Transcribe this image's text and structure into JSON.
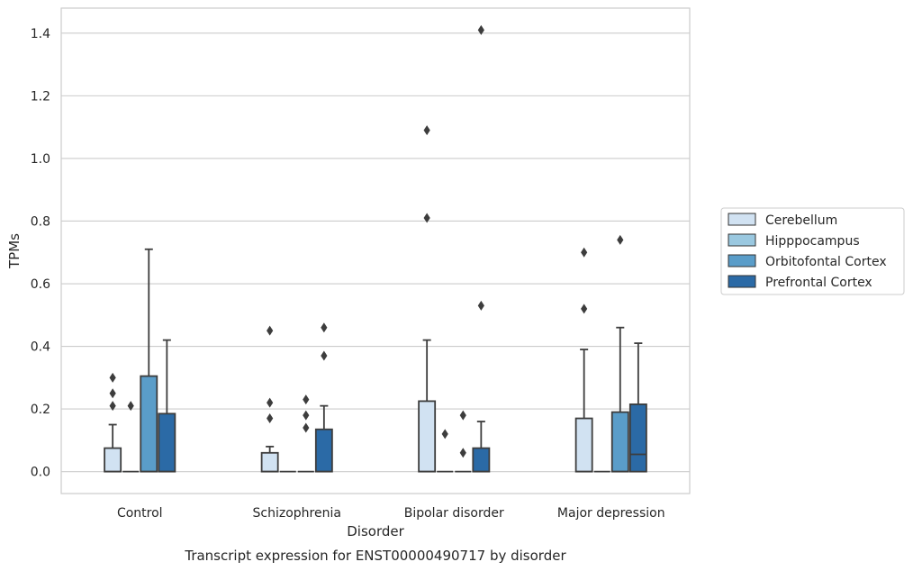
{
  "chart_data": {
    "type": "box",
    "title": "",
    "caption": "Transcript expression for ENST00000490717 by disorder",
    "xlabel": "Disorder",
    "ylabel": "TPMs",
    "ylim": [
      -0.07,
      1.48
    ],
    "yticks": [
      "0.0",
      "0.2",
      "0.4",
      "0.6",
      "0.8",
      "1.0",
      "1.2",
      "1.4"
    ],
    "grid": true,
    "legend_position": "right",
    "categories": [
      "Control",
      "Schizophrenia",
      "Bipolar disorder",
      "Major depression"
    ],
    "series": [
      {
        "name": "Cerebellum",
        "color": "#d1e2f2",
        "boxes": [
          {
            "q1": 0,
            "median": 0,
            "q3": 0.075,
            "whisker_low": 0,
            "whisker_high": 0.15,
            "outliers": [
              0.21,
              0.25,
              0.3
            ]
          },
          {
            "q1": 0,
            "median": 0,
            "q3": 0.06,
            "whisker_low": 0,
            "whisker_high": 0.08,
            "outliers": [
              0.17,
              0.22,
              0.45
            ]
          },
          {
            "q1": 0,
            "median": 0,
            "q3": 0.225,
            "whisker_low": 0,
            "whisker_high": 0.42,
            "outliers": [
              0.81,
              1.09
            ]
          },
          {
            "q1": 0,
            "median": 0,
            "q3": 0.17,
            "whisker_low": 0,
            "whisker_high": 0.39,
            "outliers": [
              0.52,
              0.7
            ]
          }
        ]
      },
      {
        "name": "Hipppocampus",
        "color": "#9ac8e0",
        "boxes": [
          {
            "q1": 0,
            "median": 0,
            "q3": 0,
            "whisker_low": 0,
            "whisker_high": 0,
            "outliers": [
              0.21
            ]
          },
          {
            "q1": 0,
            "median": 0,
            "q3": 0,
            "whisker_low": 0,
            "whisker_high": 0,
            "outliers": []
          },
          {
            "q1": 0,
            "median": 0,
            "q3": 0,
            "whisker_low": 0,
            "whisker_high": 0,
            "outliers": [
              0.12
            ]
          },
          {
            "q1": 0,
            "median": 0,
            "q3": 0,
            "whisker_low": 0,
            "whisker_high": 0,
            "outliers": []
          }
        ]
      },
      {
        "name": "Orbitofontal Cortex",
        "color": "#5a9dc9",
        "boxes": [
          {
            "q1": 0,
            "median": 0,
            "q3": 0.305,
            "whisker_low": 0,
            "whisker_high": 0.71,
            "outliers": []
          },
          {
            "q1": 0,
            "median": 0,
            "q3": 0,
            "whisker_low": 0,
            "whisker_high": 0,
            "outliers": [
              0.14,
              0.18,
              0.23
            ]
          },
          {
            "q1": 0,
            "median": 0,
            "q3": 0,
            "whisker_low": 0,
            "whisker_high": 0,
            "outliers": [
              0.06,
              0.18
            ]
          },
          {
            "q1": 0,
            "median": 0,
            "q3": 0.19,
            "whisker_low": 0,
            "whisker_high": 0.46,
            "outliers": [
              0.74
            ]
          }
        ]
      },
      {
        "name": "Prefrontal Cortex",
        "color": "#2b6aa6",
        "boxes": [
          {
            "q1": 0,
            "median": 0,
            "q3": 0.185,
            "whisker_low": 0,
            "whisker_high": 0.42,
            "outliers": []
          },
          {
            "q1": 0,
            "median": 0,
            "q3": 0.135,
            "whisker_low": 0,
            "whisker_high": 0.21,
            "outliers": [
              0.37,
              0.46
            ]
          },
          {
            "q1": 0,
            "median": 0,
            "q3": 0.075,
            "whisker_low": 0,
            "whisker_high": 0.16,
            "outliers": [
              0.53,
              1.41
            ]
          },
          {
            "q1": 0,
            "median": 0.055,
            "q3": 0.215,
            "whisker_low": 0,
            "whisker_high": 0.41,
            "outliers": []
          }
        ]
      }
    ]
  }
}
